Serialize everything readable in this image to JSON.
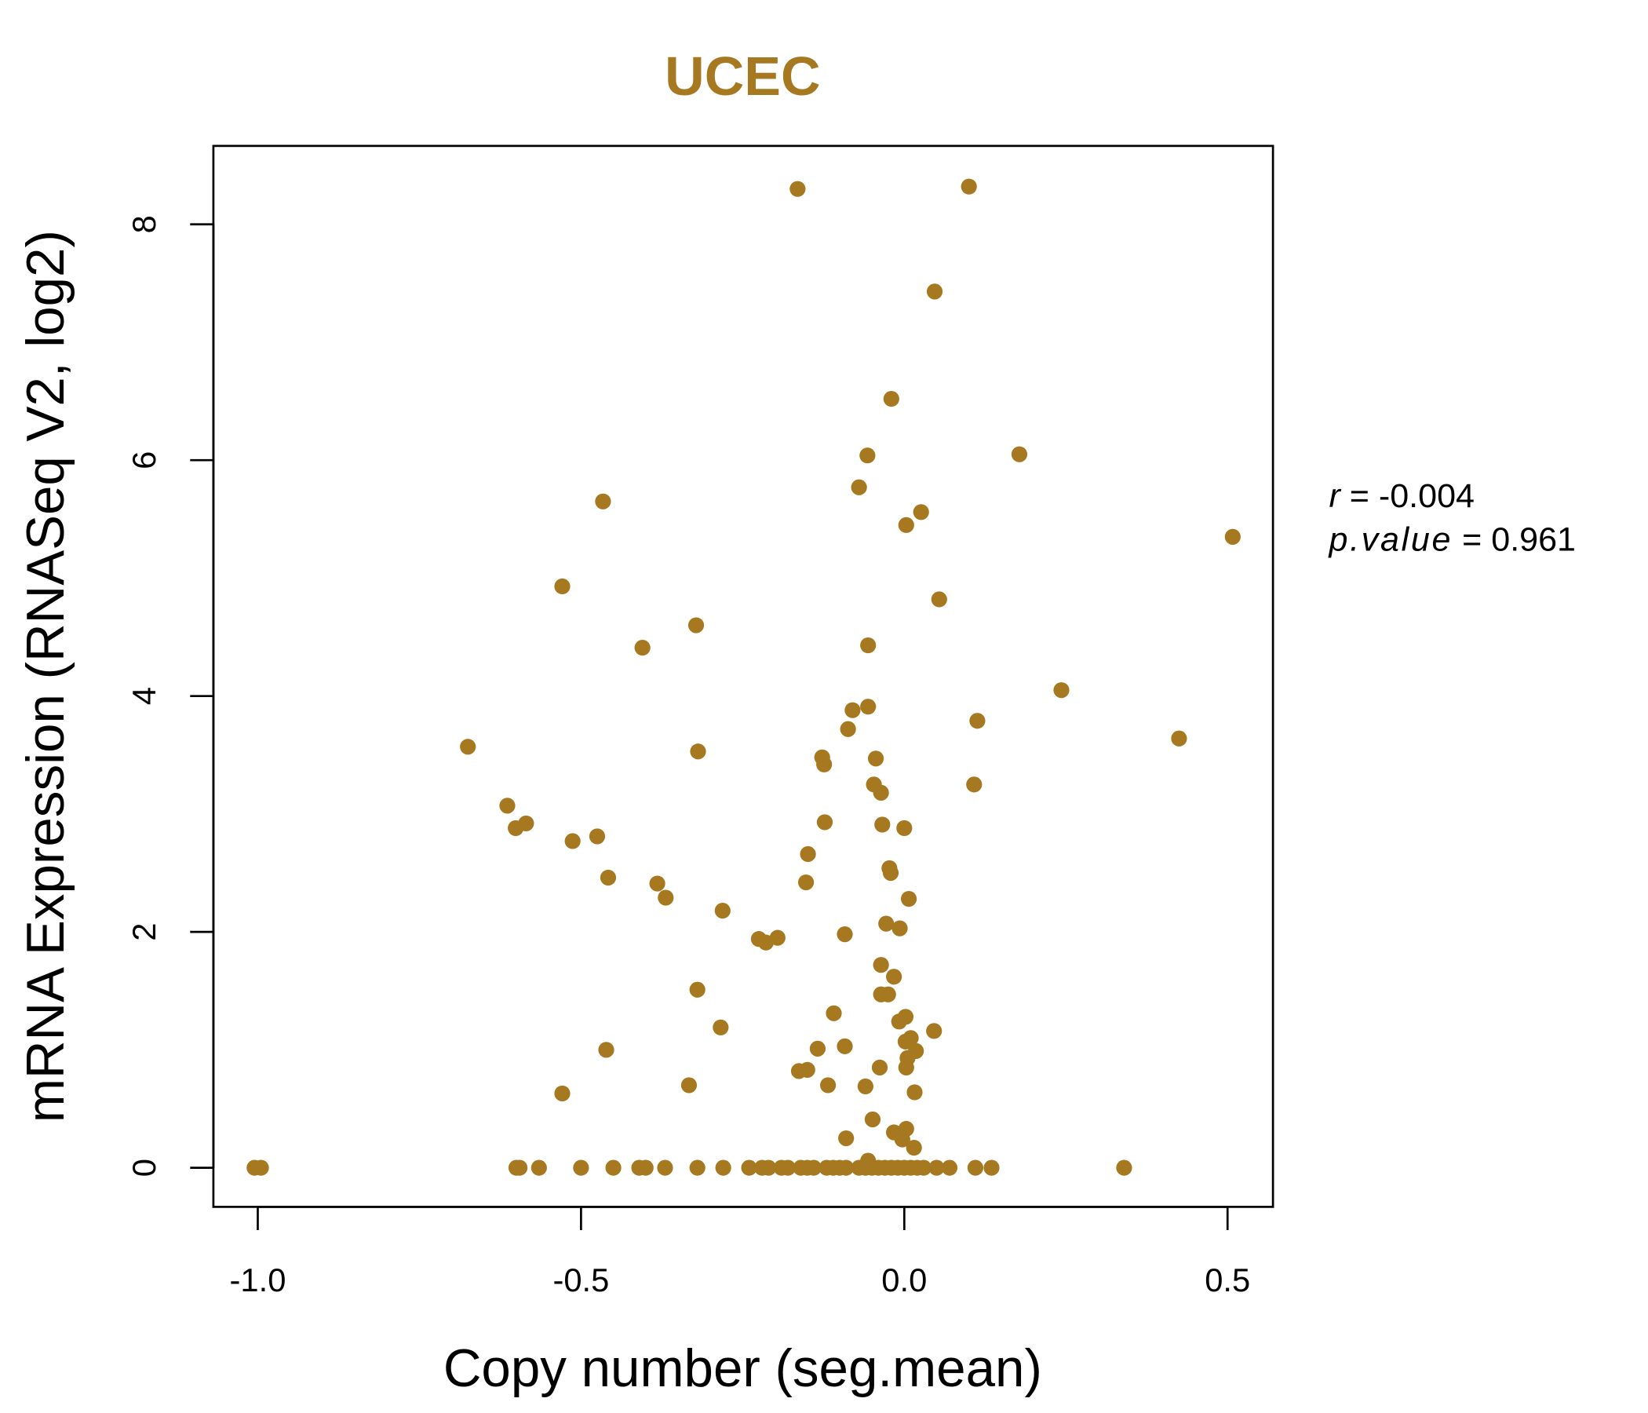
{
  "chart_data": {
    "type": "scatter",
    "title": "UCEC",
    "xlabel": "Copy number (seg.mean)",
    "ylabel": "mRNA Expression (RNASeq V2, log2)",
    "xlim": [
      -1.07,
      0.57
    ],
    "ylim": [
      -0.33,
      8.66
    ],
    "xticks": [
      -1.0,
      -0.5,
      0.0,
      0.5
    ],
    "xtick_labels": [
      "-1.0",
      "-0.5",
      "0.0",
      "0.5"
    ],
    "yticks": [
      0,
      2,
      4,
      6,
      8
    ],
    "ytick_labels": [
      "0",
      "2",
      "4",
      "6",
      "8"
    ],
    "color": "#A67820",
    "grid": false,
    "annotation": {
      "r_label": "r",
      "r_value": "-0.004",
      "p_label": "p.value",
      "p_value": "0.961"
    },
    "points": [
      [
        -0.165,
        8.3
      ],
      [
        0.1,
        8.32
      ],
      [
        0.047,
        7.43
      ],
      [
        -0.02,
        6.52
      ],
      [
        -0.057,
        6.04
      ],
      [
        0.178,
        6.05
      ],
      [
        -0.466,
        5.65
      ],
      [
        -0.07,
        5.77
      ],
      [
        0.026,
        5.56
      ],
      [
        0.003,
        5.45
      ],
      [
        0.508,
        5.35
      ],
      [
        -0.529,
        4.93
      ],
      [
        0.054,
        4.82
      ],
      [
        -0.322,
        4.6
      ],
      [
        -0.405,
        4.41
      ],
      [
        -0.056,
        4.43
      ],
      [
        0.243,
        4.05
      ],
      [
        -0.056,
        3.91
      ],
      [
        -0.08,
        3.88
      ],
      [
        0.113,
        3.79
      ],
      [
        -0.087,
        3.72
      ],
      [
        0.425,
        3.64
      ],
      [
        -0.675,
        3.57
      ],
      [
        -0.319,
        3.53
      ],
      [
        -0.127,
        3.48
      ],
      [
        -0.124,
        3.42
      ],
      [
        -0.044,
        3.47
      ],
      [
        0.108,
        3.25
      ],
      [
        -0.047,
        3.25
      ],
      [
        -0.036,
        3.18
      ],
      [
        -0.614,
        3.07
      ],
      [
        -0.601,
        2.88
      ],
      [
        -0.585,
        2.92
      ],
      [
        -0.123,
        2.93
      ],
      [
        -0.034,
        2.91
      ],
      [
        0.0,
        2.88
      ],
      [
        -0.513,
        2.77
      ],
      [
        -0.475,
        2.81
      ],
      [
        -0.149,
        2.66
      ],
      [
        -0.023,
        2.54
      ],
      [
        -0.021,
        2.5
      ],
      [
        -0.458,
        2.46
      ],
      [
        -0.382,
        2.41
      ],
      [
        -0.152,
        2.42
      ],
      [
        -0.369,
        2.29
      ],
      [
        0.007,
        2.28
      ],
      [
        -0.281,
        2.18
      ],
      [
        -0.028,
        2.07
      ],
      [
        -0.007,
        2.03
      ],
      [
        -0.092,
        1.98
      ],
      [
        -0.225,
        1.94
      ],
      [
        -0.214,
        1.91
      ],
      [
        -0.196,
        1.95
      ],
      [
        -0.036,
        1.72
      ],
      [
        -0.016,
        1.62
      ],
      [
        -0.32,
        1.51
      ],
      [
        -0.036,
        1.47
      ],
      [
        -0.025,
        1.47
      ],
      [
        -0.109,
        1.31
      ],
      [
        0.002,
        1.28
      ],
      [
        -0.008,
        1.24
      ],
      [
        -0.284,
        1.19
      ],
      [
        0.046,
        1.16
      ],
      [
        0.01,
        1.1
      ],
      [
        0.002,
        1.07
      ],
      [
        0.018,
        0.99
      ],
      [
        -0.461,
        1.0
      ],
      [
        -0.134,
        1.01
      ],
      [
        -0.092,
        1.03
      ],
      [
        0.005,
        0.93
      ],
      [
        0.003,
        0.85
      ],
      [
        -0.038,
        0.85
      ],
      [
        -0.15,
        0.83
      ],
      [
        -0.163,
        0.82
      ],
      [
        -0.118,
        0.7
      ],
      [
        -0.06,
        0.69
      ],
      [
        -0.333,
        0.7
      ],
      [
        0.016,
        0.64
      ],
      [
        -0.529,
        0.63
      ],
      [
        -0.049,
        0.41
      ],
      [
        0.003,
        0.33
      ],
      [
        -0.016,
        0.3
      ],
      [
        -0.003,
        0.24
      ],
      [
        -0.09,
        0.25
      ],
      [
        0.015,
        0.17
      ],
      [
        -0.056,
        0.06
      ],
      [
        -1.005,
        0
      ],
      [
        -0.995,
        0
      ],
      [
        -0.6,
        0
      ],
      [
        -0.595,
        0
      ],
      [
        -0.565,
        0
      ],
      [
        -0.5,
        0
      ],
      [
        -0.45,
        0
      ],
      [
        -0.41,
        0
      ],
      [
        -0.4,
        0
      ],
      [
        -0.37,
        0
      ],
      [
        -0.32,
        0
      ],
      [
        -0.28,
        0
      ],
      [
        -0.24,
        0
      ],
      [
        -0.22,
        0
      ],
      [
        -0.21,
        0
      ],
      [
        -0.19,
        0
      ],
      [
        -0.18,
        0
      ],
      [
        -0.16,
        0
      ],
      [
        -0.15,
        0
      ],
      [
        -0.14,
        0
      ],
      [
        -0.12,
        0
      ],
      [
        -0.11,
        0
      ],
      [
        -0.1,
        0
      ],
      [
        -0.09,
        0
      ],
      [
        -0.07,
        0
      ],
      [
        -0.06,
        0
      ],
      [
        -0.05,
        0
      ],
      [
        -0.04,
        0
      ],
      [
        -0.03,
        0
      ],
      [
        -0.02,
        0
      ],
      [
        -0.01,
        0
      ],
      [
        0.0,
        0
      ],
      [
        0.01,
        0
      ],
      [
        0.02,
        0
      ],
      [
        0.03,
        0
      ],
      [
        0.05,
        0
      ],
      [
        0.07,
        0
      ],
      [
        0.11,
        0
      ],
      [
        0.135,
        0
      ],
      [
        0.34,
        0
      ]
    ]
  }
}
